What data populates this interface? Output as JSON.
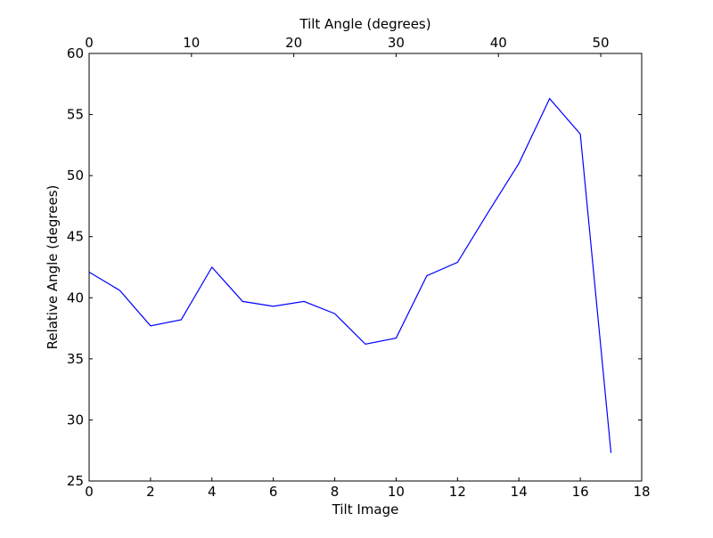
{
  "chart_data": {
    "type": "line",
    "xlabel": "Tilt Image",
    "ylabel": "Relative Angle (degrees)",
    "top_xlabel": "Tilt Angle (degrees)",
    "xlim": [
      0,
      18
    ],
    "ylim": [
      25,
      60
    ],
    "top_xlim": [
      0,
      54
    ],
    "xticks": [
      0,
      2,
      4,
      6,
      8,
      10,
      12,
      14,
      16,
      18
    ],
    "yticks": [
      25,
      30,
      35,
      40,
      45,
      50,
      55,
      60
    ],
    "top_xticks": [
      0,
      10,
      20,
      30,
      40,
      50
    ],
    "grid": false,
    "line_color": "#0000ff",
    "series": [
      {
        "x": [
          0,
          1,
          2,
          3,
          4,
          5,
          6,
          7,
          8,
          9,
          10,
          11,
          12,
          13,
          14,
          15,
          16,
          17
        ],
        "values": [
          42.1,
          40.6,
          37.7,
          38.2,
          42.5,
          39.7,
          39.3,
          39.7,
          38.7,
          36.2,
          36.7,
          41.8,
          42.9,
          47.0,
          51.0,
          56.3,
          53.4,
          27.3
        ]
      }
    ]
  }
}
